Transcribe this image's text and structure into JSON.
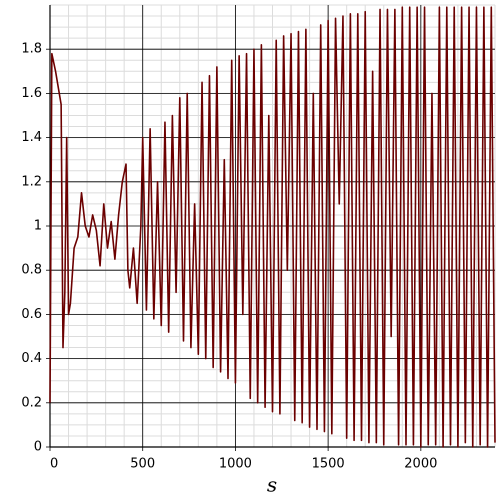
{
  "chart_data": {
    "type": "line",
    "x_label": "s",
    "color": "#6b0000",
    "grid": true,
    "xlim": [
      0,
      2400
    ],
    "ylim": [
      0,
      2
    ],
    "xticks": [
      0,
      500,
      1000,
      1500,
      2000
    ],
    "yticks": [
      0,
      0.2,
      0.4,
      0.6,
      0.8,
      1,
      1.2,
      1.4,
      1.6,
      1.8
    ],
    "x": [
      0,
      10,
      30,
      60,
      70,
      80,
      90,
      100,
      110,
      130,
      150,
      170,
      190,
      210,
      230,
      250,
      270,
      290,
      310,
      330,
      350,
      370,
      390,
      410,
      420,
      430,
      450,
      470,
      490,
      500,
      520,
      540,
      560,
      580,
      600,
      620,
      640,
      660,
      680,
      700,
      720,
      740,
      760,
      780,
      800,
      820,
      840,
      860,
      880,
      900,
      920,
      940,
      960,
      980,
      1000,
      1020,
      1040,
      1060,
      1080,
      1100,
      1120,
      1140,
      1160,
      1180,
      1200,
      1220,
      1240,
      1260,
      1280,
      1300,
      1320,
      1340,
      1360,
      1380,
      1400,
      1420,
      1440,
      1460,
      1480,
      1500,
      1520,
      1540,
      1560,
      1580,
      1600,
      1620,
      1640,
      1660,
      1680,
      1700,
      1720,
      1740,
      1760,
      1780,
      1800,
      1820,
      1840,
      1860,
      1880,
      1900,
      1920,
      1940,
      1960,
      1980,
      2000,
      2020,
      2040,
      2060,
      2080,
      2100,
      2120,
      2140,
      2160,
      2180,
      2200,
      2220,
      2240,
      2260,
      2280,
      2300,
      2320,
      2340,
      2360,
      2380,
      2400
    ],
    "values": [
      0.2,
      1.78,
      1.7,
      1.55,
      0.45,
      0.7,
      1.4,
      0.6,
      0.65,
      0.9,
      0.95,
      1.15,
      1.0,
      0.95,
      1.05,
      0.98,
      0.82,
      1.1,
      0.9,
      1.02,
      0.85,
      1.05,
      1.2,
      1.28,
      0.8,
      0.72,
      0.9,
      0.65,
      1.0,
      1.4,
      0.62,
      1.44,
      0.58,
      1.2,
      0.55,
      1.47,
      0.52,
      1.5,
      0.7,
      1.58,
      0.48,
      1.6,
      0.45,
      1.1,
      0.42,
      1.65,
      0.4,
      1.68,
      0.36,
      1.72,
      0.34,
      1.3,
      0.31,
      1.75,
      0.29,
      1.77,
      0.6,
      1.78,
      0.22,
      1.8,
      0.2,
      1.82,
      0.18,
      1.5,
      0.16,
      1.84,
      0.15,
      1.86,
      0.8,
      1.87,
      0.12,
      1.88,
      0.11,
      1.89,
      0.09,
      1.6,
      0.08,
      1.91,
      0.07,
      1.93,
      0.06,
      1.94,
      1.1,
      1.95,
      0.04,
      1.96,
      0.03,
      1.96,
      0.03,
      1.97,
      0.02,
      1.7,
      0.02,
      1.98,
      0.01,
      1.98,
      0.5,
      1.98,
      0.01,
      1.99,
      0.01,
      1.99,
      0.01,
      1.99,
      0,
      1.99,
      0.01,
      1.6,
      0.01,
      1.99,
      0,
      1.99,
      0.01,
      1.99,
      0,
      1.99,
      0.02,
      1.99,
      0,
      1.99,
      0.01,
      1.99,
      0,
      1.99,
      0.02
    ]
  }
}
